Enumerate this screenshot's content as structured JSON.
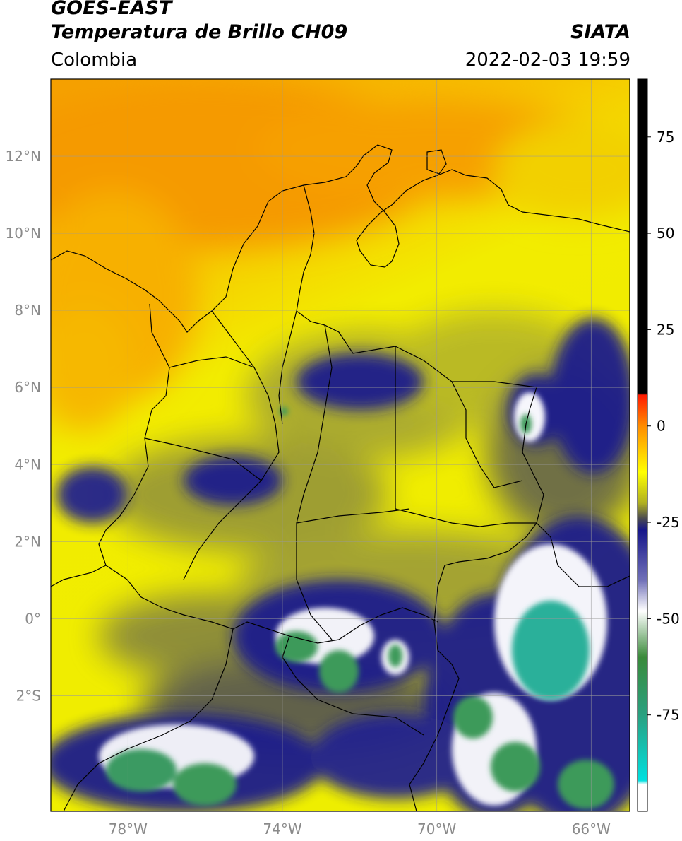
{
  "header": {
    "satellite": "GOES-EAST",
    "product": "Temperatura de Brillo CH09",
    "organization": "SIATA",
    "region": "Colombia",
    "datetime": "2022-02-03 19:59"
  },
  "map": {
    "lon_range": [
      -80,
      -65
    ],
    "lat_range": [
      -5,
      14
    ],
    "lat_ticks": [
      {
        "value": 12,
        "label": "12°N"
      },
      {
        "value": 10,
        "label": "10°N"
      },
      {
        "value": 8,
        "label": "8°N"
      },
      {
        "value": 6,
        "label": "6°N"
      },
      {
        "value": 4,
        "label": "4°N"
      },
      {
        "value": 2,
        "label": "2°N"
      },
      {
        "value": 0,
        "label": "0°"
      },
      {
        "value": -2,
        "label": "2°S"
      }
    ],
    "lon_ticks": [
      {
        "value": -78,
        "label": "78°W"
      },
      {
        "value": -74,
        "label": "74°W"
      },
      {
        "value": -70,
        "label": "70°W"
      },
      {
        "value": -66,
        "label": "66°W"
      }
    ],
    "grid": true,
    "colors": {
      "warm_orange": "#f59d00",
      "yellow": "#f2f200",
      "olive": "#b8b826",
      "gray": "#4a4a52",
      "navy": "#1a1a8c",
      "white": "#ffffff",
      "green": "#3c9a5a",
      "teal": "#2bb09a"
    }
  },
  "colorbar": {
    "range": [
      -100,
      90
    ],
    "ticks": [
      {
        "value": 75,
        "label": "75"
      },
      {
        "value": 50,
        "label": "50"
      },
      {
        "value": 25,
        "label": "25"
      },
      {
        "value": 0,
        "label": "0"
      },
      {
        "value": -25,
        "label": "-25"
      },
      {
        "value": -50,
        "label": "-50"
      },
      {
        "value": -75,
        "label": "-75"
      }
    ],
    "stops": [
      {
        "value": 90,
        "color": "#000000"
      },
      {
        "value": 8.5,
        "color": "#000000"
      },
      {
        "value": 8,
        "color": "#ff1a00"
      },
      {
        "value": 0,
        "color": "#ff8c00"
      },
      {
        "value": -12,
        "color": "#ffff00"
      },
      {
        "value": -20,
        "color": "#b0b020"
      },
      {
        "value": -24,
        "color": "#4a4a50"
      },
      {
        "value": -27,
        "color": "#16168a"
      },
      {
        "value": -40,
        "color": "#7070b8"
      },
      {
        "value": -48,
        "color": "#ffffff"
      },
      {
        "value": -60,
        "color": "#3a8a3a"
      },
      {
        "value": -75,
        "color": "#2aa080"
      },
      {
        "value": -92,
        "color": "#00e0e0"
      },
      {
        "value": -93,
        "color": "#ffffff"
      },
      {
        "value": -100,
        "color": "#ffffff"
      }
    ]
  }
}
